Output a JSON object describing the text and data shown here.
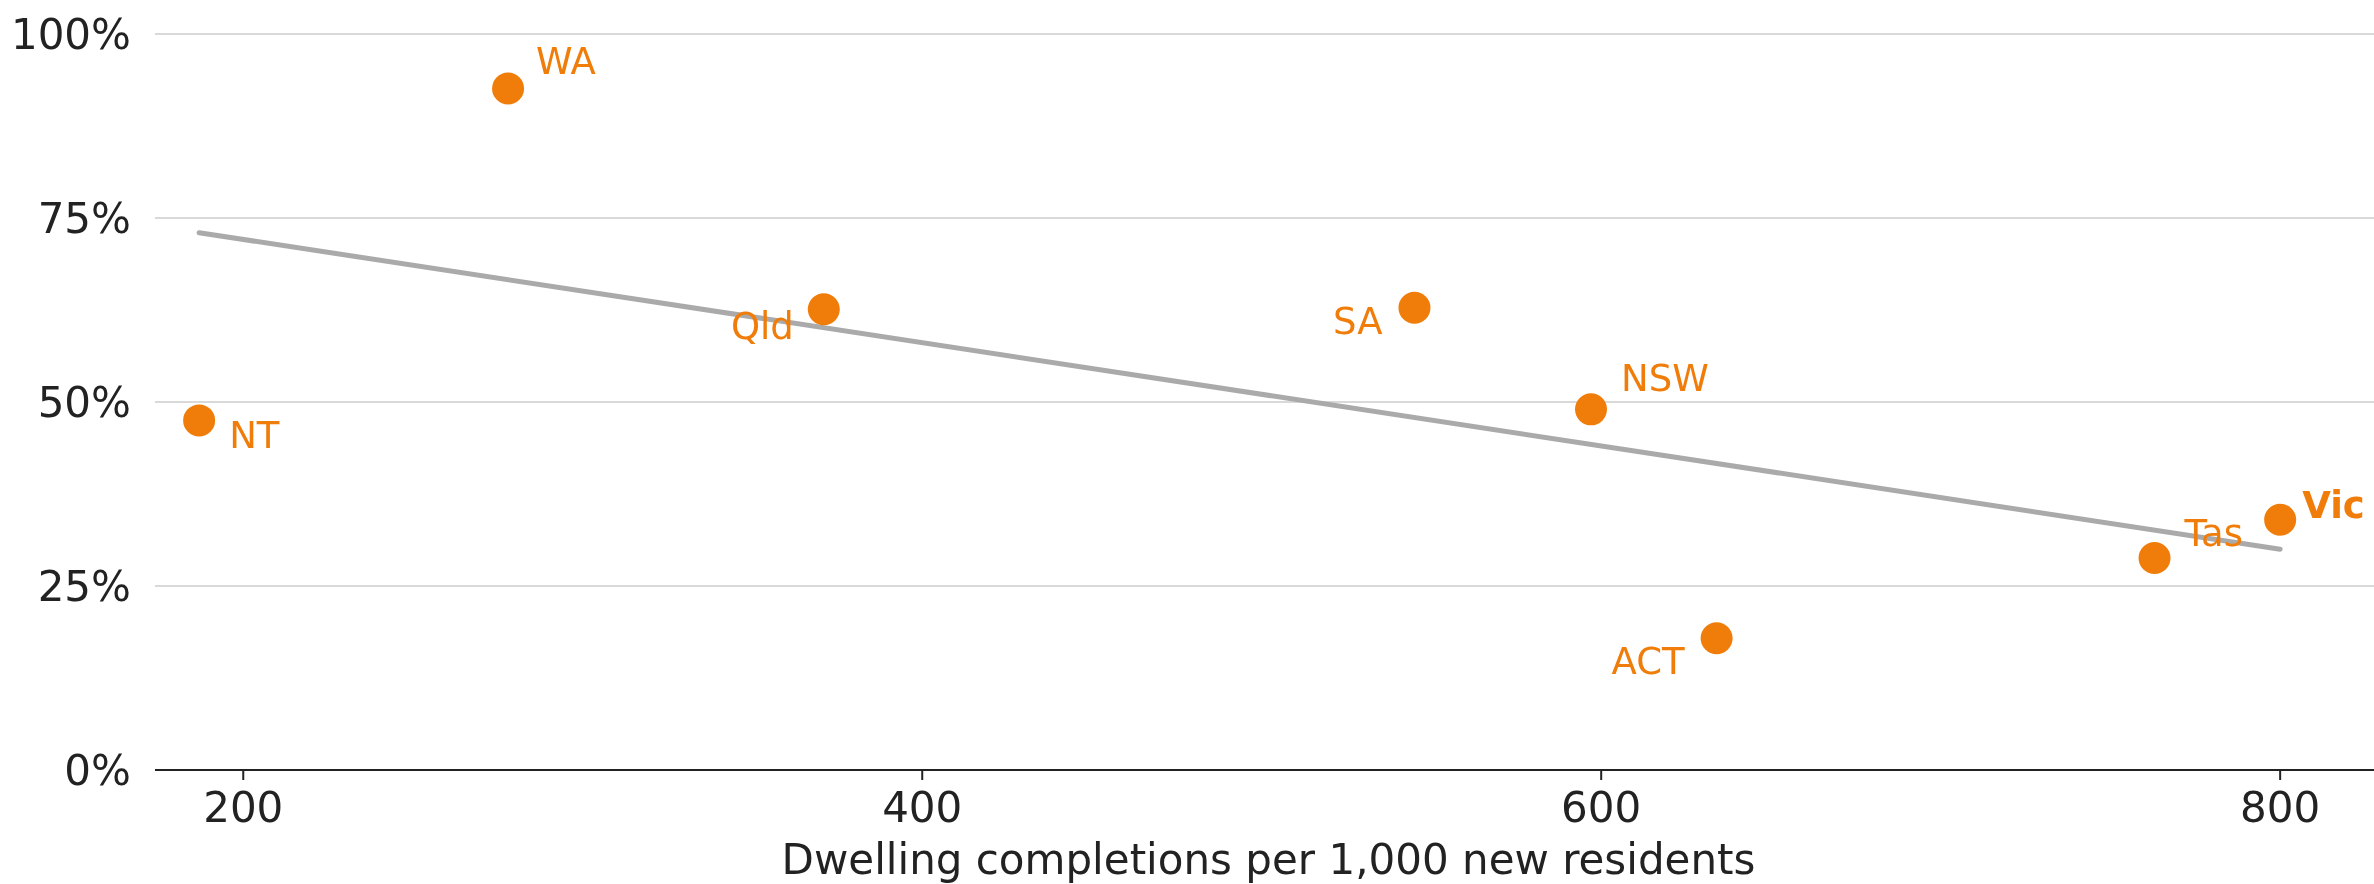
{
  "chart_data": {
    "type": "scatter",
    "xlabel": "Dwelling completions per 1,000 new residents",
    "xlim": [
      174,
      830
    ],
    "xticks": [
      200,
      400,
      600,
      800
    ],
    "ylim": [
      0,
      100
    ],
    "yticks": [
      {
        "value": 0,
        "label": "0%"
      },
      {
        "value": 25,
        "label": "25%"
      },
      {
        "value": 50,
        "label": "50%"
      },
      {
        "value": 75,
        "label": "75%"
      },
      {
        "value": 100,
        "label": "100%"
      }
    ],
    "grid": "y",
    "series": [
      {
        "marker": "circle",
        "color": "#f07d0a",
        "x": [
          187,
          278,
          371,
          545,
          597,
          634,
          763,
          800
        ],
        "values": [
          47.5,
          92.6,
          62.6,
          62.8,
          49,
          17.9,
          28.8,
          34
        ]
      },
      {
        "type": "line",
        "color": "#aaaaaa",
        "x": [
          187,
          800
        ],
        "values": [
          73,
          30
        ]
      }
    ],
    "annotations": [
      {
        "text": "NT",
        "x": 187,
        "y": 47.5
      },
      {
        "text": "WA",
        "x": 278,
        "y": 92.6
      },
      {
        "text": "Qld",
        "x": 371,
        "y": 62.6
      },
      {
        "text": "SA",
        "x": 545,
        "y": 62.8
      },
      {
        "text": "NSW",
        "x": 597,
        "y": 49
      },
      {
        "text": "ACT",
        "x": 634,
        "y": 17.9
      },
      {
        "text": "Tas",
        "x": 763,
        "y": 28.8
      },
      {
        "text": "Vic",
        "x": 800,
        "y": 34
      }
    ]
  }
}
